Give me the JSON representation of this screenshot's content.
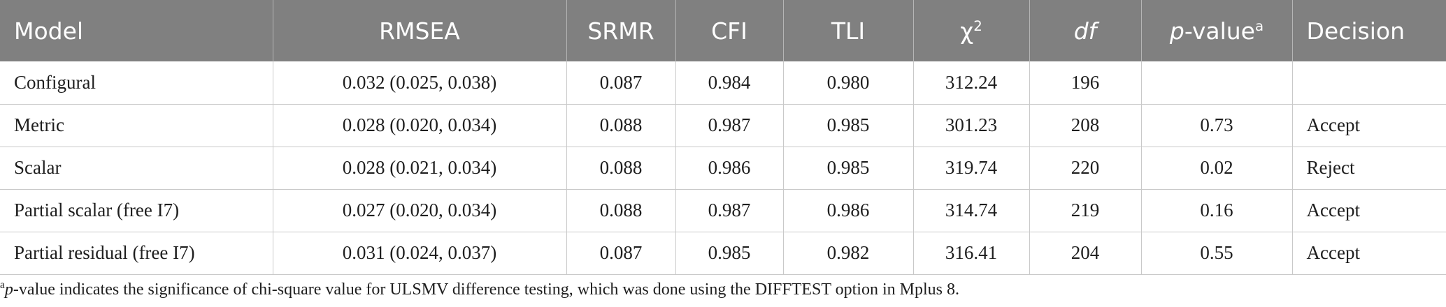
{
  "headers": {
    "model": "Model",
    "rmsea": "RMSEA",
    "srmr": "SRMR",
    "cfi": "CFI",
    "tli": "TLI",
    "chi_symbol": "χ",
    "chi_sup": "2",
    "df": "df",
    "pvalue_italic": "p",
    "pvalue_rest": "-value",
    "pvalue_sup": "a",
    "decision": "Decision"
  },
  "rows": [
    {
      "model": "Configural",
      "rmsea": "0.032 (0.025, 0.038)",
      "srmr": "0.087",
      "cfi": "0.984",
      "tli": "0.980",
      "chi2": "312.24",
      "df": "196",
      "p": "",
      "decision": ""
    },
    {
      "model": "Metric",
      "rmsea": "0.028 (0.020, 0.034)",
      "srmr": "0.088",
      "cfi": "0.987",
      "tli": "0.985",
      "chi2": "301.23",
      "df": "208",
      "p": "0.73",
      "decision": "Accept"
    },
    {
      "model": "Scalar",
      "rmsea": "0.028 (0.021, 0.034)",
      "srmr": "0.088",
      "cfi": "0.986",
      "tli": "0.985",
      "chi2": "319.74",
      "df": "220",
      "p": "0.02",
      "decision": "Reject"
    },
    {
      "model": "Partial scalar (free I7)",
      "rmsea": "0.027 (0.020, 0.034)",
      "srmr": "0.088",
      "cfi": "0.987",
      "tli": "0.986",
      "chi2": "314.74",
      "df": "219",
      "p": "0.16",
      "decision": "Accept"
    },
    {
      "model": "Partial residual (free I7)",
      "rmsea": "0.031 (0.024, 0.037)",
      "srmr": "0.087",
      "cfi": "0.985",
      "tli": "0.982",
      "chi2": "316.41",
      "df": "204",
      "p": "0.55",
      "decision": "Accept"
    }
  ],
  "footnote": {
    "marker": "a",
    "italic": "p",
    "text": "-value indicates the significance of chi-square value for ULSMV difference testing, which was done using the DIFFTEST option in Mplus 8."
  }
}
